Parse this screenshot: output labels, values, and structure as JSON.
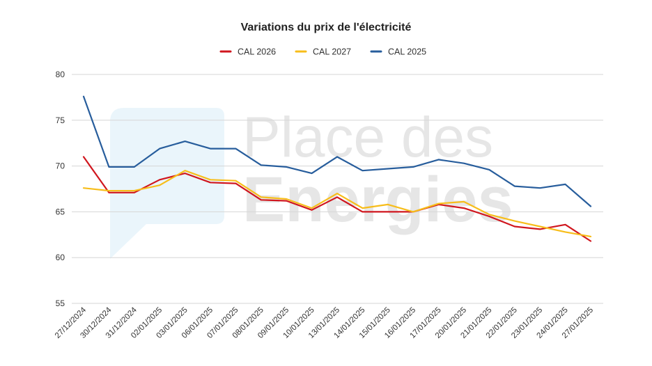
{
  "watermark": {
    "line1": "Place des",
    "line2": "Energies"
  },
  "chart_data": {
    "type": "line",
    "title": "Variations du prix de l'électricité",
    "xlabel": "",
    "ylabel": "",
    "ylim": [
      55,
      80
    ],
    "yticks": [
      55,
      60,
      65,
      70,
      75,
      80
    ],
    "grid": true,
    "legend_position": "top-center",
    "categories": [
      "27/12/2024",
      "30/12/2024",
      "31/12/2024",
      "02/01/2025",
      "03/01/2025",
      "06/01/2025",
      "07/01/2025",
      "08/01/2025",
      "09/01/2025",
      "10/01/2025",
      "13/01/2025",
      "14/01/2025",
      "15/01/2025",
      "16/01/2025",
      "17/01/2025",
      "20/01/2025",
      "21/01/2025",
      "22/01/2025",
      "23/01/2025",
      "24/01/2025",
      "27/01/2025"
    ],
    "series": [
      {
        "name": "CAL 2026",
        "color": "#d0161e",
        "values": [
          71.0,
          67.1,
          67.1,
          68.5,
          69.2,
          68.2,
          68.1,
          66.3,
          66.2,
          65.2,
          66.6,
          65.0,
          65.0,
          65.0,
          65.8,
          65.4,
          64.5,
          63.4,
          63.1,
          63.6,
          61.8
        ]
      },
      {
        "name": "CAL 2027",
        "color": "#f7bd1a",
        "values": [
          67.6,
          67.3,
          67.3,
          67.9,
          69.5,
          68.5,
          68.4,
          66.6,
          66.4,
          65.4,
          67.0,
          65.4,
          65.8,
          65.0,
          65.9,
          66.1,
          64.7,
          64.0,
          63.4,
          62.8,
          62.3
        ]
      },
      {
        "name": "CAL 2025",
        "color": "#275d9c",
        "values": [
          77.6,
          69.9,
          69.9,
          71.9,
          72.7,
          71.9,
          71.9,
          70.1,
          69.9,
          69.2,
          71.0,
          69.5,
          69.7,
          69.9,
          70.7,
          70.3,
          69.6,
          67.8,
          67.6,
          68.0,
          65.6
        ]
      }
    ]
  }
}
